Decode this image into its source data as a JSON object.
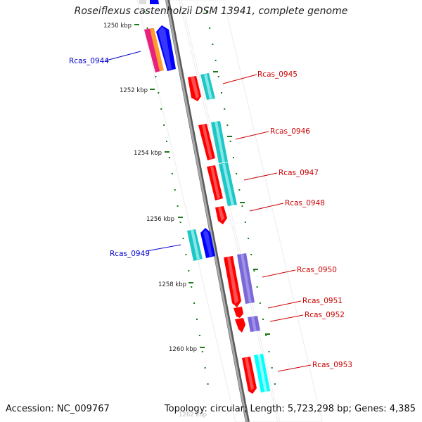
{
  "title": "Roseiflexus castenholzii DSM 13941, complete genome",
  "footer": {
    "accession": "Accession: NC_009767",
    "topology": "Topology: circular; Length: 5,723,298 bp; Genes: 4,385"
  },
  "ruler": {
    "unit": "kbp",
    "labels": [
      "1250 kbp",
      "1252 kbp",
      "1254 kbp",
      "1256 kbp",
      "1258 kbp",
      "1260 kbp",
      "1262 kbp"
    ],
    "values": [
      1250,
      1252,
      1254,
      1256,
      1258,
      1260,
      1262
    ]
  },
  "colors": {
    "reverse_label": "#0000cc",
    "forward_label": "#cc0000",
    "backbone": "#8a8a8a",
    "tick": "#1a7a1a",
    "red": "#ff0000",
    "cyan": "#1fc6c6",
    "cyan_bright": "#00ffff",
    "blue": "#0000ff",
    "purple": "#7b68d8",
    "magenta": "#e8207e",
    "orange": "#ff9a30"
  },
  "genes": [
    {
      "id": "Rcas_0944",
      "label": "Rcas_0944",
      "strand": "reverse"
    },
    {
      "id": "Rcas_0945",
      "label": "Rcas_0945",
      "strand": "forward"
    },
    {
      "id": "Rcas_0946",
      "label": "Rcas_0946",
      "strand": "forward"
    },
    {
      "id": "Rcas_0947",
      "label": "Rcas_0947",
      "strand": "forward"
    },
    {
      "id": "Rcas_0948",
      "label": "Rcas_0948",
      "strand": "forward"
    },
    {
      "id": "Rcas_0949",
      "label": "Rcas_0949",
      "strand": "reverse"
    },
    {
      "id": "Rcas_0950",
      "label": "Rcas_0950",
      "strand": "forward"
    },
    {
      "id": "Rcas_0951",
      "label": "Rcas_0951",
      "strand": "forward"
    },
    {
      "id": "Rcas_0952",
      "label": "Rcas_0952",
      "strand": "forward"
    },
    {
      "id": "Rcas_0953",
      "label": "Rcas_0953",
      "strand": "forward"
    }
  ]
}
